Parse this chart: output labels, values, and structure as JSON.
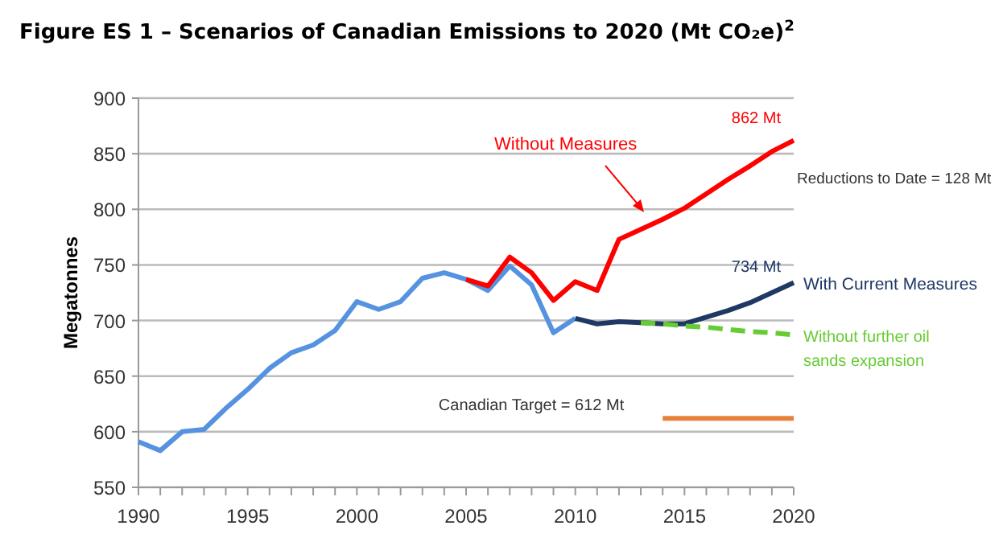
{
  "chart_data": {
    "type": "line",
    "title": "Figure ES 1 – Scenarios of Canadian Emissions to 2020 (Mt CO₂e)$^{2}$",
    "ylabel": "Megatonnes",
    "series": [
      {
        "color": "#5592e0",
        "x": [
          1990,
          1991,
          1992,
          1993,
          1994,
          1995,
          1996,
          1997,
          1998,
          1999,
          2000,
          2001,
          2002,
          2003,
          2004,
          2005,
          2006,
          2007,
          2008,
          2009,
          2010
        ],
        "values": [
          591,
          583,
          600,
          602,
          621,
          638,
          657,
          671,
          678,
          691,
          717,
          710,
          717,
          738,
          743,
          737,
          727,
          749,
          732,
          689,
          702
        ]
      },
      {
        "name": "Without Measures",
        "color": "#ff0000",
        "x": [
          2005,
          2006,
          2007,
          2008,
          2009,
          2010,
          2011,
          2012,
          2013,
          2014,
          2015,
          2016,
          2017,
          2018,
          2019,
          2020
        ],
        "values": [
          737,
          731,
          757,
          743,
          718,
          735,
          727,
          773,
          782,
          791,
          801,
          814,
          827,
          839,
          852,
          862
        ]
      },
      {
        "name": "With Current Measures",
        "color": "#1f3864",
        "x": [
          2010,
          2011,
          2012,
          2013,
          2014,
          2015,
          2016,
          2017,
          2018,
          2019,
          2020
        ],
        "values": [
          702,
          697,
          699,
          698,
          697,
          697,
          703,
          709,
          716,
          725,
          734
        ]
      },
      {
        "name": "Without further oil sands expansion",
        "color": "#66cc33",
        "line_style": "dashed",
        "x": [
          2013,
          2014,
          2015,
          2016,
          2017,
          2018,
          2019,
          2020
        ],
        "values": [
          698,
          697,
          695,
          694,
          692,
          690,
          689,
          687
        ]
      },
      {
        "name": "Canadian Target = 612 Mt",
        "color": "#e8823a",
        "x": [
          2014,
          2020
        ],
        "values": [
          612,
          612
        ]
      }
    ],
    "annotations": [
      {
        "text": "862 Mt",
        "x": 2020,
        "y": 862
      },
      {
        "text": "734 Mt",
        "x": 2020,
        "y": 734
      },
      "Reductions to Date = 128 Mt"
    ],
    "xlim": [
      1990,
      2020
    ],
    "xticks": [
      1990,
      {
        "value": 1991,
        "label": null
      },
      {
        "value": 1992,
        "label": null
      },
      {
        "value": 1993,
        "label": null
      },
      {
        "value": 1994,
        "label": null
      },
      1995,
      {
        "value": 1996,
        "label": null
      },
      {
        "value": 1997,
        "label": null
      },
      {
        "value": 1998,
        "label": null
      },
      {
        "value": 1999,
        "label": null
      },
      2000,
      {
        "value": 2001,
        "label": null
      },
      {
        "value": 2002,
        "label": null
      },
      {
        "value": 2003,
        "label": null
      },
      {
        "value": 2004,
        "label": null
      },
      2005,
      {
        "value": 2006,
        "label": null
      },
      {
        "value": 2007,
        "label": null
      },
      {
        "value": 2008,
        "label": null
      },
      {
        "value": 2009,
        "label": null
      },
      2010,
      {
        "value": 2011,
        "label": null
      },
      {
        "value": 2012,
        "label": null
      },
      {
        "value": 2013,
        "label": null
      },
      {
        "value": 2014,
        "label": null
      },
      2015,
      {
        "value": 2016,
        "label": null
      },
      {
        "value": 2017,
        "label": null
      },
      {
        "value": 2018,
        "label": null
      },
      {
        "value": 2019,
        "label": null
      },
      2020
    ],
    "ylim": [
      550,
      900
    ],
    "yticks": [
      550,
      600,
      650,
      700,
      750,
      800,
      850,
      900
    ],
    "grid": "y",
    "marker": "none",
    "line_style": "solid"
  }
}
